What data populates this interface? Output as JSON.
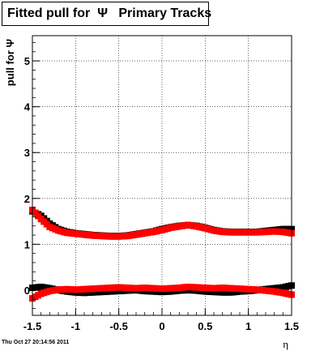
{
  "title": "Fitted pull for  Ψ   Primary Tracks",
  "footer": {
    "timestamp": "Thu Oct 27 20:14:56 2011"
  },
  "chart_data": {
    "type": "scatter",
    "title": "Fitted pull for  Ψ   Primary Tracks",
    "xlabel": "η",
    "ylabel": "pull for Ψ",
    "xlim": [
      -1.5,
      1.5
    ],
    "ylim": [
      -0.55,
      5.55
    ],
    "x_ticks": [
      "-1.5",
      "-1",
      "-0.5",
      "0",
      "0.5",
      "1",
      "1.5"
    ],
    "y_ticks": [
      "0",
      "1",
      "2",
      "3",
      "4",
      "5"
    ],
    "grid": true,
    "series": [
      {
        "color": "#000000",
        "marker": "square",
        "x": [
          -1.5,
          -1.4,
          -1.3,
          -1.2,
          -1.1,
          -1.0,
          -0.9,
          -0.8,
          -0.7,
          -0.6,
          -0.5,
          -0.4,
          -0.3,
          -0.2,
          -0.1,
          0.0,
          0.1,
          0.2,
          0.3,
          0.4,
          0.5,
          0.6,
          0.7,
          0.8,
          0.9,
          1.0,
          1.1,
          1.2,
          1.3,
          1.4,
          1.5
        ],
        "y": [
          1.72,
          1.62,
          1.45,
          1.33,
          1.27,
          1.24,
          1.22,
          1.2,
          1.19,
          1.18,
          1.18,
          1.19,
          1.22,
          1.25,
          1.28,
          1.33,
          1.37,
          1.4,
          1.42,
          1.4,
          1.36,
          1.31,
          1.28,
          1.27,
          1.27,
          1.27,
          1.27,
          1.29,
          1.31,
          1.33,
          1.33
        ]
      },
      {
        "color": "#ff0000",
        "marker": "square",
        "x": [
          -1.5,
          -1.4,
          -1.3,
          -1.2,
          -1.1,
          -1.0,
          -0.9,
          -0.8,
          -0.7,
          -0.6,
          -0.5,
          -0.4,
          -0.3,
          -0.2,
          -0.1,
          0.0,
          0.1,
          0.2,
          0.3,
          0.4,
          0.5,
          0.6,
          0.7,
          0.8,
          0.9,
          1.0,
          1.1,
          1.2,
          1.3,
          1.4,
          1.5
        ],
        "y": [
          1.75,
          1.55,
          1.38,
          1.3,
          1.25,
          1.23,
          1.21,
          1.19,
          1.18,
          1.17,
          1.17,
          1.18,
          1.21,
          1.24,
          1.27,
          1.31,
          1.36,
          1.39,
          1.42,
          1.39,
          1.35,
          1.3,
          1.27,
          1.26,
          1.26,
          1.26,
          1.26,
          1.27,
          1.28,
          1.27,
          1.24
        ]
      },
      {
        "color": "#000000",
        "marker": "square",
        "x": [
          -1.5,
          -1.4,
          -1.3,
          -1.2,
          -1.1,
          -1.0,
          -0.9,
          -0.8,
          -0.7,
          -0.6,
          -0.5,
          -0.4,
          -0.3,
          -0.2,
          -0.1,
          0.0,
          0.1,
          0.2,
          0.3,
          0.4,
          0.5,
          0.6,
          0.7,
          0.8,
          0.9,
          1.0,
          1.1,
          1.2,
          1.3,
          1.4,
          1.5
        ],
        "y": [
          0.05,
          0.07,
          0.04,
          0.0,
          -0.03,
          -0.05,
          -0.06,
          -0.05,
          -0.04,
          -0.03,
          -0.02,
          -0.01,
          0.0,
          -0.02,
          -0.03,
          -0.04,
          -0.03,
          -0.01,
          0.0,
          -0.01,
          -0.03,
          -0.04,
          -0.05,
          -0.05,
          -0.03,
          -0.02,
          0.0,
          0.02,
          0.04,
          0.06,
          0.1
        ]
      },
      {
        "color": "#ff0000",
        "marker": "square",
        "x": [
          -1.5,
          -1.4,
          -1.3,
          -1.2,
          -1.1,
          -1.0,
          -0.9,
          -0.8,
          -0.7,
          -0.6,
          -0.5,
          -0.4,
          -0.3,
          -0.2,
          -0.1,
          0.0,
          0.1,
          0.2,
          0.3,
          0.4,
          0.5,
          0.6,
          0.7,
          0.8,
          0.9,
          1.0,
          1.1,
          1.2,
          1.3,
          1.4,
          1.5
        ],
        "y": [
          -0.18,
          -0.08,
          -0.02,
          0.01,
          0.02,
          0.01,
          0.02,
          0.03,
          0.04,
          0.05,
          0.06,
          0.05,
          0.04,
          0.05,
          0.04,
          0.03,
          0.04,
          0.05,
          0.07,
          0.06,
          0.05,
          0.04,
          0.05,
          0.04,
          0.03,
          0.02,
          0.01,
          -0.01,
          -0.03,
          -0.06,
          -0.1
        ]
      }
    ]
  }
}
